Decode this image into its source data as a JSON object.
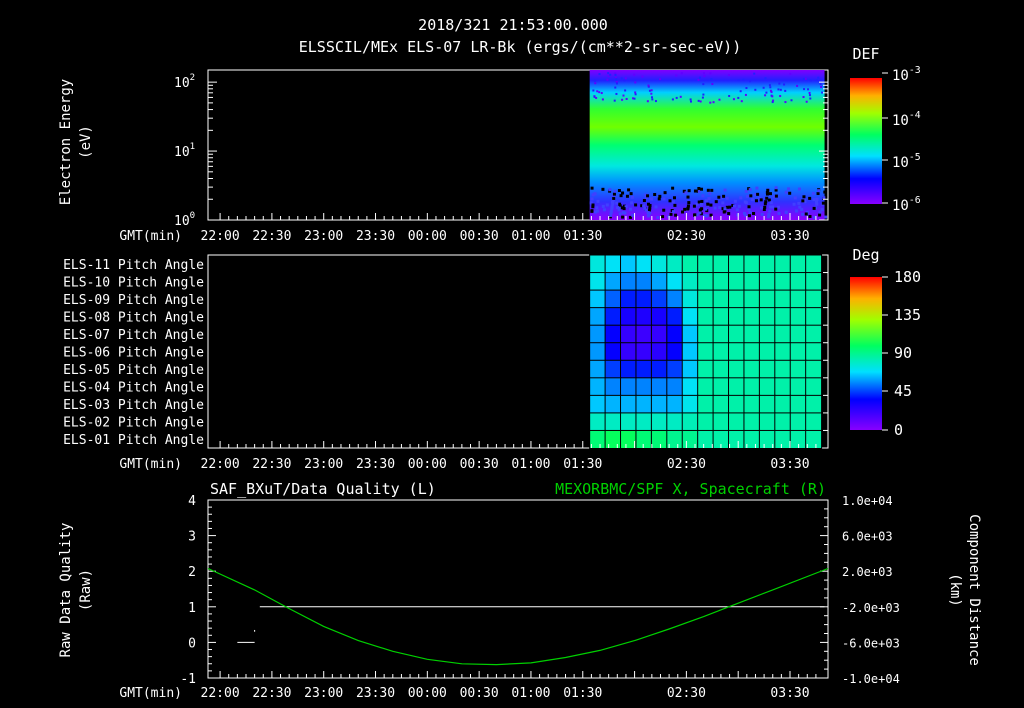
{
  "header": {
    "title_line1": "2018/321 21:53:00.000",
    "title_line2": "ELSSCIL/MEx ELS-07 LR-Bk  (ergs/(cm**2-sr-sec-eV))"
  },
  "time_axis": {
    "label": "GMT(min)",
    "ticks": [
      "22:00",
      "22:30",
      "23:00",
      "23:30",
      "00:00",
      "00:30",
      "01:00",
      "01:30",
      "02:30",
      "03:30"
    ],
    "tick_minutes": [
      0,
      30,
      60,
      90,
      120,
      150,
      180,
      210,
      270,
      330
    ]
  },
  "chart_data": [
    {
      "id": "energy-spectrogram",
      "type": "heatmap",
      "ylabel_line1": "Electron Energy",
      "ylabel_line2": "(eV)",
      "yscale": "log",
      "ylim": [
        1,
        150
      ],
      "yticks": [
        {
          "base": "10",
          "exp": "2"
        },
        {
          "base": "10",
          "exp": "1"
        },
        {
          "base": "10",
          "exp": "0"
        }
      ],
      "xlim_min_from_2200": [
        -7,
        352
      ],
      "data_start_min": 214,
      "data_end_min": 350,
      "colorbar": {
        "title": "DEF",
        "labels": [
          {
            "base": "10",
            "exp": "-3"
          },
          {
            "base": "10",
            "exp": "-4"
          },
          {
            "base": "10",
            "exp": "-5"
          },
          {
            "base": "10",
            "exp": "-6"
          }
        ]
      }
    },
    {
      "id": "pitch-angle",
      "type": "heatmap",
      "rows": [
        "ELS-11 Pitch Angle",
        "ELS-10 Pitch Angle",
        "ELS-09 Pitch Angle",
        "ELS-08 Pitch Angle",
        "ELS-07 Pitch Angle",
        "ELS-06 Pitch Angle",
        "ELS-05 Pitch Angle",
        "ELS-04 Pitch Angle",
        "ELS-03 Pitch Angle",
        "ELS-02 Pitch Angle",
        "ELS-01 Pitch Angle"
      ],
      "data_start_min": 214,
      "data_end_min": 348,
      "columns": 15,
      "values_deg": [
        [
          75,
          70,
          65,
          70,
          75,
          80,
          85,
          85,
          85,
          85,
          85,
          85,
          85,
          85,
          85
        ],
        [
          72,
          60,
          55,
          55,
          60,
          70,
          80,
          85,
          85,
          85,
          85,
          85,
          85,
          85,
          85
        ],
        [
          65,
          50,
          40,
          40,
          45,
          55,
          75,
          85,
          85,
          85,
          85,
          85,
          85,
          85,
          85
        ],
        [
          60,
          40,
          30,
          28,
          30,
          40,
          70,
          85,
          85,
          85,
          85,
          85,
          85,
          85,
          85
        ],
        [
          58,
          35,
          22,
          20,
          22,
          35,
          65,
          85,
          85,
          85,
          85,
          85,
          85,
          85,
          85
        ],
        [
          58,
          35,
          22,
          22,
          25,
          35,
          65,
          85,
          85,
          85,
          85,
          85,
          85,
          85,
          85
        ],
        [
          60,
          45,
          40,
          40,
          40,
          45,
          65,
          85,
          85,
          85,
          85,
          85,
          85,
          85,
          85
        ],
        [
          62,
          55,
          55,
          55,
          55,
          55,
          70,
          85,
          85,
          85,
          85,
          85,
          85,
          85,
          85
        ],
        [
          65,
          62,
          62,
          62,
          62,
          62,
          72,
          85,
          85,
          85,
          85,
          85,
          85,
          85,
          85
        ],
        [
          80,
          80,
          80,
          80,
          80,
          80,
          82,
          85,
          85,
          85,
          85,
          85,
          85,
          85,
          85
        ],
        [
          95,
          100,
          100,
          95,
          95,
          90,
          90,
          85,
          85,
          85,
          85,
          85,
          85,
          85,
          85
        ]
      ],
      "colorbar": {
        "title": "Deg",
        "labels": [
          "180",
          "135",
          "90",
          "45",
          "0"
        ]
      }
    },
    {
      "id": "data-quality",
      "type": "line",
      "left_title": "SAF_BXuT/Data Quality (L)",
      "right_title": "MEXORBMC/SPF X, Spacecraft (R)",
      "ylabel_left_line1": "Raw Data Quality",
      "ylabel_left_line2": "(Raw)",
      "ylabel_right_line1": "Component Distance",
      "ylabel_right_line2": "(km)",
      "left_ylim": [
        -1,
        4
      ],
      "left_ticks": [
        "4",
        "3",
        "2",
        "1",
        "0",
        "-1"
      ],
      "right_ylim": [
        -10000,
        10000
      ],
      "right_ticks": [
        "1.0e+04",
        "6.0e+03",
        "2.0e+03",
        "-2.0e+03",
        "-6.0e+03",
        "-1.0e+04"
      ],
      "series": [
        {
          "name": "Data Quality",
          "color": "#ffffff",
          "segments": [
            {
              "x": [
                10,
                20
              ],
              "y": [
                0,
                0
              ]
            },
            {
              "x": [
                23,
                350
              ],
              "y": [
                1,
                1
              ]
            }
          ]
        },
        {
          "name": "SPF X",
          "color": "#00d000",
          "x": [
            -7,
            20,
            40,
            60,
            80,
            100,
            120,
            140,
            160,
            180,
            200,
            220,
            240,
            260,
            280,
            300,
            320,
            352
          ],
          "y": [
            2300,
            -100,
            -2200,
            -4200,
            -5800,
            -7000,
            -7900,
            -8400,
            -8500,
            -8300,
            -7700,
            -6900,
            -5800,
            -4500,
            -3100,
            -1600,
            -100,
            2300
          ]
        }
      ]
    }
  ]
}
